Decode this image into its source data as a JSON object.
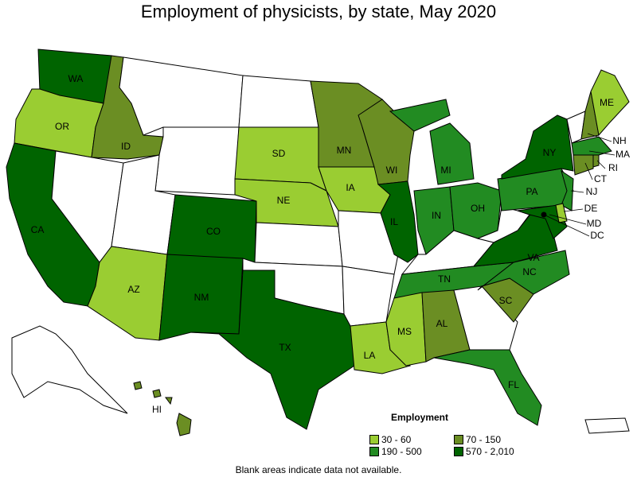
{
  "title": "Employment of physicists, by state, May 2020",
  "legend": {
    "title": "Employment",
    "categories": [
      {
        "key": "c1",
        "label": "30 - 60",
        "color": "#9ACD32"
      },
      {
        "key": "c2",
        "label": "70 - 150",
        "color": "#6B8E23"
      },
      {
        "key": "c3",
        "label": "190 - 500",
        "color": "#228B22"
      },
      {
        "key": "c4",
        "label": "570 - 2,010",
        "color": "#006400"
      }
    ]
  },
  "no_data_color": "#FFFFFF",
  "note": "Blank areas indicate data not available.",
  "states": {
    "WA": "c4",
    "CA": "c4",
    "CO": "c4",
    "NM": "c4",
    "TX": "c4",
    "IL": "c4",
    "NY": "c4",
    "VA": "c4",
    "MD": "c4",
    "DC": "c4",
    "MI": "c3",
    "IN": "c3",
    "OH": "c3",
    "PA": "c3",
    "NJ": "c3",
    "TN": "c3",
    "NC": "c3",
    "FL": "c3",
    "MA": "c3",
    "ID": "c2",
    "MN": "c2",
    "WI": "c2",
    "AL": "c2",
    "SC": "c2",
    "NH": "c2",
    "CT": "c2",
    "RI": "c2",
    "HI": "c2",
    "OR": "c1",
    "AZ": "c1",
    "SD": "c1",
    "NE": "c1",
    "IA": "c1",
    "LA": "c1",
    "MS": "c1",
    "ME": "c1",
    "DE": "c1",
    "MT": null,
    "WY": null,
    "NV": null,
    "UT": null,
    "ND": null,
    "KS": null,
    "OK": null,
    "MO": null,
    "AR": null,
    "KY": null,
    "WV": null,
    "GA": null,
    "VT": null,
    "AK": null,
    "PR": null
  },
  "labeled_states": [
    "WA",
    "OR",
    "CA",
    "ID",
    "AZ",
    "CO",
    "NM",
    "TX",
    "SD",
    "NE",
    "MN",
    "IA",
    "WI",
    "IL",
    "MI",
    "IN",
    "OH",
    "PA",
    "NY",
    "VA",
    "TN",
    "NC",
    "SC",
    "AL",
    "MS",
    "LA",
    "FL",
    "ME",
    "NH",
    "MA",
    "RI",
    "CT",
    "NJ",
    "DE",
    "MD",
    "DC",
    "HI"
  ]
}
